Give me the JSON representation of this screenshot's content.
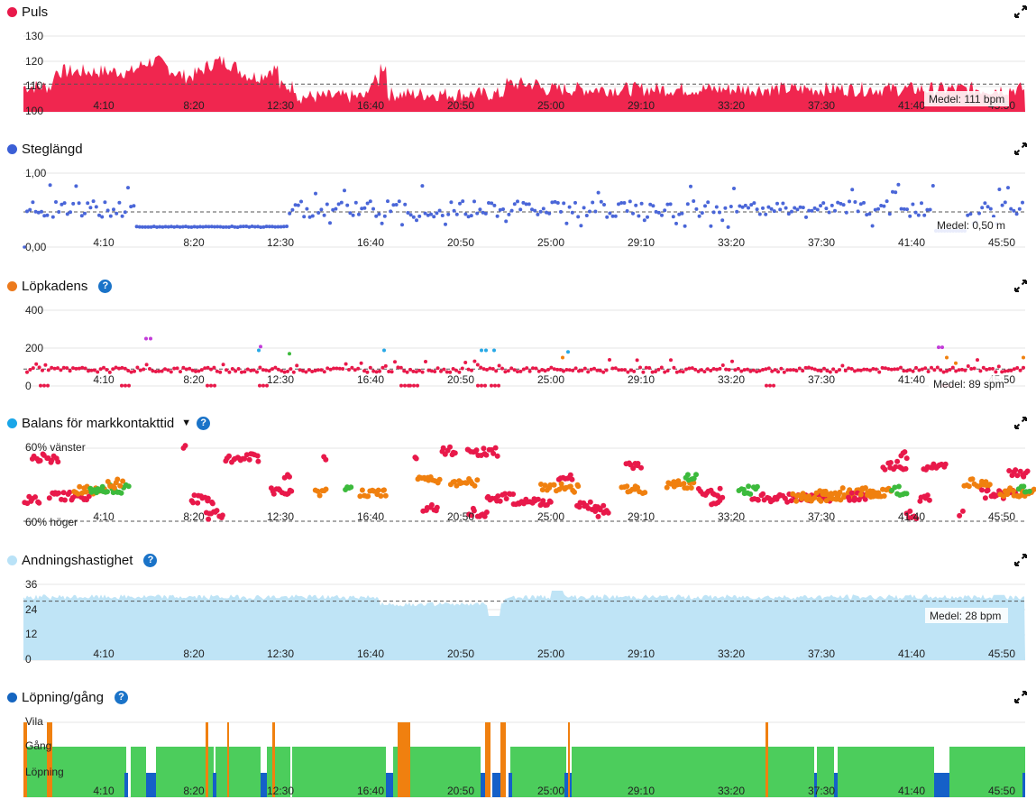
{
  "x_ticks": [
    "4:10",
    "8:20",
    "12:30",
    "16:40",
    "20:50",
    "25:00",
    "29:10",
    "33:20",
    "37:30",
    "41:40",
    "45:50"
  ],
  "panels": {
    "puls": {
      "title": "Puls",
      "color": "#e8194a",
      "y_ticks": [
        "130",
        "120",
        "110",
        "100"
      ],
      "avg": "Medel: 111 bpm"
    },
    "steg": {
      "title": "Steglängd",
      "color": "#3b5fd6",
      "y_ticks": [
        "1,00",
        "0,00"
      ],
      "avg": "Medel: 0,50 m"
    },
    "kadens": {
      "title": "Löpkadens",
      "color": "#ec7a1c",
      "y_ticks": [
        "400",
        "200",
        "0"
      ],
      "avg": "Medel: 89 spm"
    },
    "balans": {
      "title": "Balans för markkontakttid",
      "color": "#1aa6e8",
      "y_ticks": [
        "60% vänster",
        "60% höger"
      ]
    },
    "andning": {
      "title": "Andningshastighet",
      "color": "#b9e2f7",
      "y_ticks": [
        "36",
        "24",
        "12",
        "0"
      ],
      "avg": "Medel: 28 bpm"
    },
    "lopning": {
      "title": "Löpning/gång",
      "color": "#1565c0",
      "y_ticks": [
        "Vila",
        "Gång",
        "Löpning"
      ]
    }
  },
  "icons": {
    "expand": "expand-icon",
    "help": "help-icon",
    "dropdown": "chevron-down-icon"
  },
  "colors": {
    "heart": "#f0264f",
    "stride": "#4a66d8",
    "cadence_red": "#e8194a",
    "cadence_purple": "#c23bd8",
    "cadence_blue": "#29a9e6",
    "orange": "#f0800f",
    "green": "#3cba3c",
    "breath": "#bfe4f6",
    "walk": "#4ccd5c",
    "run": "#1560c8"
  }
}
